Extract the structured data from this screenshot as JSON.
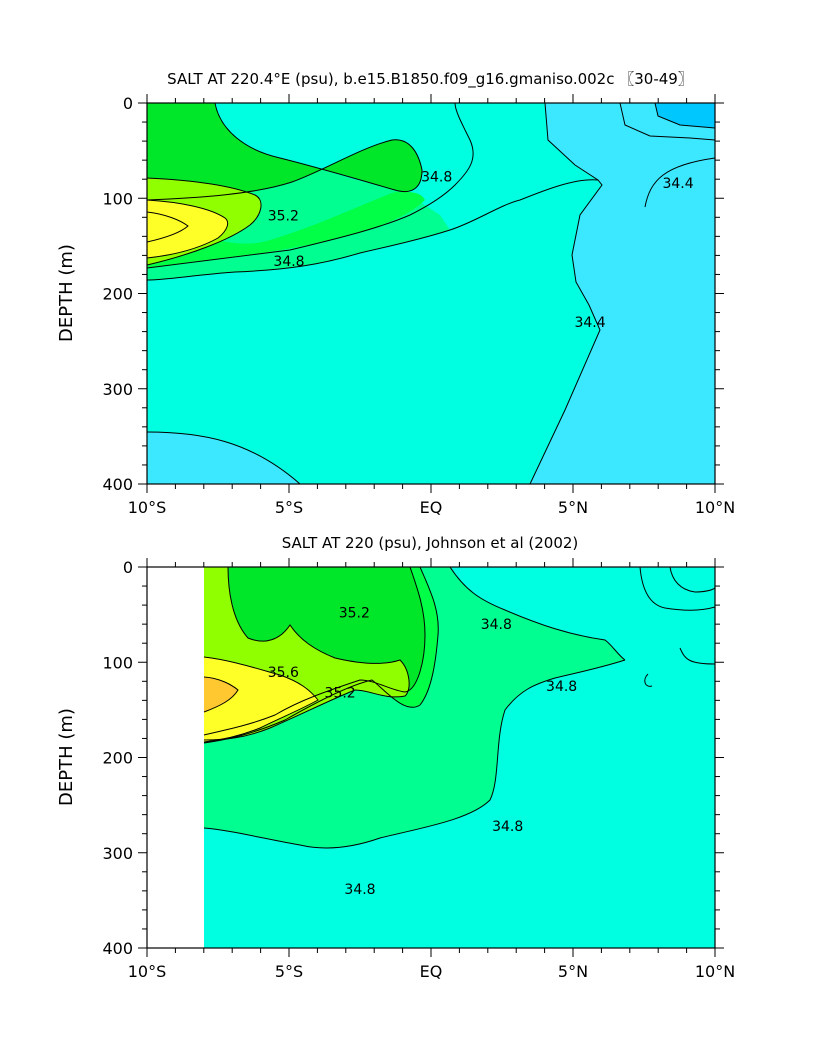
{
  "chart_data": [
    {
      "type": "contour",
      "title": "SALT AT 220.4°E (psu), b.e15.B1850.f09_g16.gmaniso.002c 〖30-49〗",
      "xlabel": "",
      "ylabel": "DEPTH (m)",
      "xlim": [
        -10,
        10
      ],
      "ylim": [
        0,
        400
      ],
      "y_inverted": true,
      "x_ticks": [
        -10,
        -5,
        0,
        5,
        10
      ],
      "x_tick_labels": [
        "10°S",
        "5°S",
        "EQ",
        "5°N",
        "10°N"
      ],
      "y_ticks": [
        0,
        100,
        200,
        300,
        400
      ],
      "y_tick_labels": [
        "0",
        "100",
        "200",
        "300",
        "400"
      ],
      "contour_interval": 0.2,
      "contour_labels": [
        {
          "text": "35.2",
          "x": -5.2,
          "y": 118
        },
        {
          "text": "34.8",
          "x": -5.0,
          "y": 166
        },
        {
          "text": "34.8",
          "x": 0.2,
          "y": 77
        },
        {
          "text": "34.4",
          "x": 8.7,
          "y": 84
        },
        {
          "text": "34.4",
          "x": 5.6,
          "y": 230
        }
      ],
      "colors": {
        "c34_0": "#00c8ff",
        "c34_2": "#3ce8ff",
        "c34_4": "#00ffe0",
        "c34_6": "#00ff90",
        "c34_8": "#00ff46",
        "c35_0": "#00e628",
        "c35_2": "#90ff00",
        "c35_4": "#ffff28",
        "c35_6": "#ffc830",
        "c35_8": "#f0a040"
      }
    },
    {
      "type": "contour",
      "title": "SALT AT 220 (psu), Johnson et al (2002)",
      "xlabel": "",
      "ylabel": "DEPTH (m)",
      "xlim": [
        -10,
        10
      ],
      "ylim": [
        0,
        400
      ],
      "y_inverted": true,
      "x_ticks": [
        -10,
        -5,
        0,
        5,
        10
      ],
      "x_tick_labels": [
        "10°S",
        "5°S",
        "EQ",
        "5°N",
        "10°N"
      ],
      "y_ticks": [
        0,
        100,
        200,
        300,
        400
      ],
      "y_tick_labels": [
        "0",
        "100",
        "200",
        "300",
        "400"
      ],
      "data_xlim": [
        -8,
        10
      ],
      "contour_labels": [
        {
          "text": "35.2",
          "x": -2.7,
          "y": 48
        },
        {
          "text": "35.6",
          "x": -5.2,
          "y": 110
        },
        {
          "text": "35.2",
          "x": -3.2,
          "y": 132
        },
        {
          "text": "34.8",
          "x": 2.3,
          "y": 60
        },
        {
          "text": "34.8",
          "x": 4.6,
          "y": 125
        },
        {
          "text": "34.8",
          "x": 2.7,
          "y": 272
        },
        {
          "text": "34.8",
          "x": -2.5,
          "y": 338
        }
      ]
    }
  ]
}
